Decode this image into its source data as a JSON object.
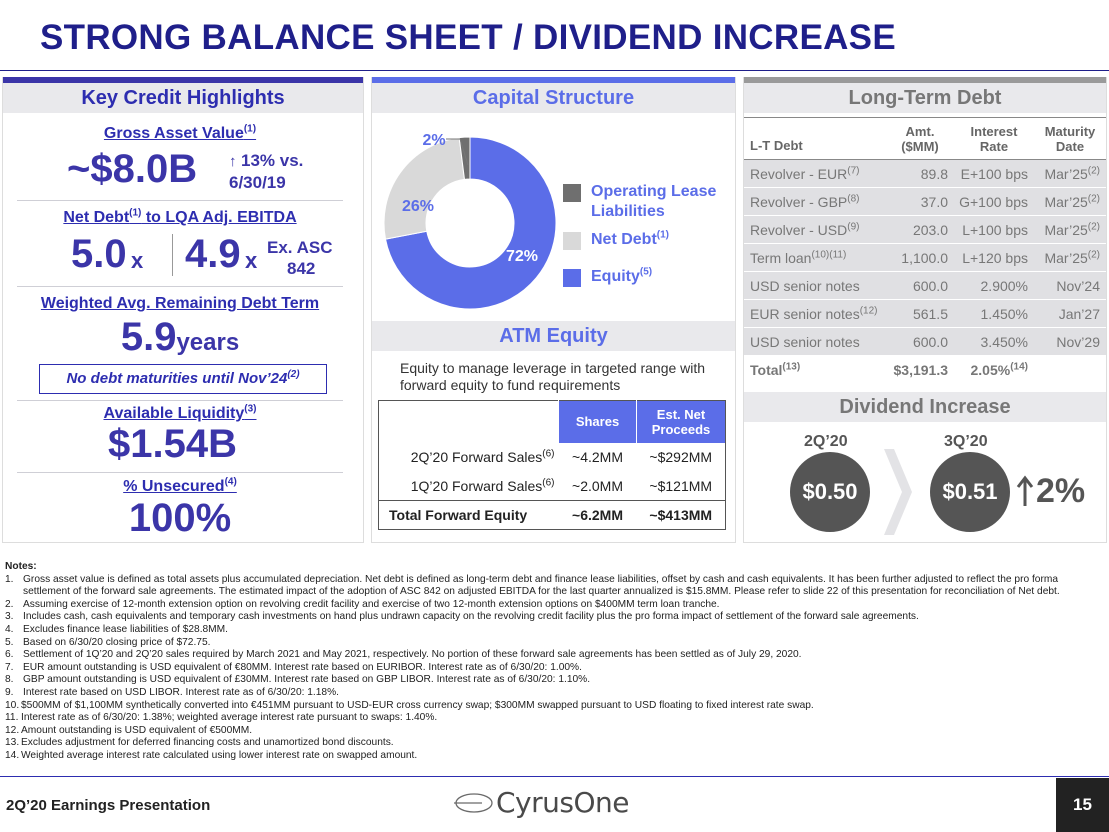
{
  "title": "STRONG BALANCE SHEET / DIVIDEND INCREASE",
  "key_credit": {
    "heading": "Key Credit Highlights",
    "gav_label": "Gross Asset Value",
    "gav_sup": "(1)",
    "gav_value": "~$8.0B",
    "gav_change_line1": "13% vs.",
    "gav_change_line2": "6/30/19",
    "netdebt_label_a": "Net Debt",
    "netdebt_sup": "(1)",
    "netdebt_label_b": " to LQA Adj. EBITDA",
    "lev_value1": "5.0",
    "lev_x1": "x",
    "lev_value2": "4.9",
    "lev_x2": "x",
    "lev_note_line1": "Ex. ASC",
    "lev_note_line2": "842",
    "term_label": "Weighted Avg. Remaining Debt Term",
    "term_value": "5.9",
    "term_unit": "years",
    "maturity_note": "No debt maturities until Nov’24",
    "maturity_sup": "(2)",
    "liq_label": "Available Liquidity",
    "liq_sup": "(3)",
    "liq_value": "$1.54B",
    "unsec_label": "% Unsecured",
    "unsec_sup": "(4)",
    "unsec_value": "100%"
  },
  "capital_structure": {
    "heading": "Capital Structure",
    "legend": [
      {
        "label_line1": "Operating Lease",
        "label_line2": "Liabilities",
        "sup": "",
        "color": "#6f6f6f"
      },
      {
        "label_line1": "Net Debt",
        "label_line2": "",
        "sup": "(1)",
        "color": "#d9d9d9"
      },
      {
        "label_line1": "Equity",
        "label_line2": "",
        "sup": "(5)",
        "color": "#5b6de8"
      }
    ]
  },
  "chart_data": {
    "type": "pie",
    "categories": [
      "Equity",
      "Net Debt",
      "Operating Lease Liabilities"
    ],
    "values": [
      72,
      26,
      2
    ],
    "labels": [
      "72%",
      "26%",
      "2%"
    ],
    "colors": [
      "#5b6de8",
      "#d9d9d9",
      "#6f6f6f"
    ],
    "legend_position": "right"
  },
  "atm": {
    "heading": "ATM Equity",
    "description": "Equity to manage leverage in targeted range with forward equity to fund requirements",
    "col_shares": "Shares",
    "col_proceeds_line1": "Est. Net",
    "col_proceeds_line2": "Proceeds",
    "rows": [
      {
        "label": "2Q’20 Forward Sales",
        "sup": "(6)",
        "shares": "~4.2MM",
        "proceeds": "~$292MM"
      },
      {
        "label": "1Q’20 Forward Sales",
        "sup": "(6)",
        "shares": "~2.0MM",
        "proceeds": "~$121MM"
      }
    ],
    "total": {
      "label": "Total Forward Equity",
      "shares": "~6.2MM",
      "proceeds": "~$413MM"
    }
  },
  "ltd": {
    "heading": "Long-Term Debt",
    "col_debt": "L-T Debt",
    "col_amt_line1": "Amt.",
    "col_amt_line2": "($MM)",
    "col_rate_line1": "Interest",
    "col_rate_line2": "Rate",
    "col_mat_line1": "Maturity",
    "col_mat_line2": "Date",
    "rows": [
      {
        "name": "Revolver - EUR",
        "sup": "(7)",
        "amt": "89.8",
        "rate": "E+100 bps",
        "maturity": "Mar’25",
        "msup": "(2)"
      },
      {
        "name": "Revolver - GBP",
        "sup": "(8)",
        "amt": "37.0",
        "rate": "G+100 bps",
        "maturity": "Mar’25",
        "msup": "(2)"
      },
      {
        "name": "Revolver - USD",
        "sup": "(9)",
        "amt": "203.0",
        "rate": "L+100 bps",
        "maturity": "Mar’25",
        "msup": "(2)"
      },
      {
        "name": "Term loan",
        "sup": "(10)(11)",
        "amt": "1,100.0",
        "rate": "L+120 bps",
        "maturity": "Mar’25",
        "msup": "(2)"
      },
      {
        "name": "USD senior notes",
        "sup": "",
        "amt": "600.0",
        "rate": "2.900%",
        "maturity": "Nov’24",
        "msup": ""
      },
      {
        "name": "EUR senior notes",
        "sup": "(12)",
        "amt": "561.5",
        "rate": "1.450%",
        "maturity": "Jan’27",
        "msup": ""
      },
      {
        "name": "USD senior notes",
        "sup": "",
        "amt": "600.0",
        "rate": "3.450%",
        "maturity": "Nov’29",
        "msup": ""
      }
    ],
    "total": {
      "name": "Total",
      "sup": "(13)",
      "amt": "$3,191.3",
      "rate": "2.05%",
      "rsup": "(14)"
    }
  },
  "dividend": {
    "heading": "Dividend Increase",
    "q1": "2Q’20",
    "v1": "$0.50",
    "q2": "3Q’20",
    "v2": "$0.51",
    "pct": "2%"
  },
  "notes": {
    "title": "Notes:",
    "items": [
      {
        "n": "1.",
        "t": "Gross asset value is defined as total assets plus accumulated depreciation. Net debt is defined as long-term debt and finance lease liabilities, offset by cash and cash equivalents. It has been further adjusted to reflect the pro forma settlement of the forward sale agreements. The estimated impact of the adoption of ASC 842 on adjusted EBITDA for the last quarter annualized is $15.8MM. Please refer to slide 22 of this presentation for reconciliation of Net debt."
      },
      {
        "n": "2.",
        "t": "Assuming exercise of 12-month extension option on revolving credit facility and exercise of two 12-month extension options on $400MM term loan tranche."
      },
      {
        "n": "3.",
        "t": "Includes cash, cash equivalents and temporary cash investments on hand plus undrawn capacity on the revolving credit facility plus the pro forma impact of settlement of the forward sale agreements."
      },
      {
        "n": "4.",
        "t": "Excludes finance lease liabilities of $28.8MM."
      },
      {
        "n": "5.",
        "t": "Based on 6/30/20 closing price of $72.75."
      },
      {
        "n": "6.",
        "t": "Settlement of 1Q’20 and 2Q’20 sales required by March 2021 and May 2021, respectively. No portion of these forward sale agreements has been settled as of July 29, 2020."
      },
      {
        "n": "7.",
        "t": "EUR amount outstanding is USD equivalent of €80MM. Interest rate based on EURIBOR. Interest rate as of 6/30/20: 1.00%."
      },
      {
        "n": "8.",
        "t": "GBP amount outstanding is USD equivalent of £30MM. Interest rate based on GBP LIBOR. Interest rate as of 6/30/20: 1.10%."
      },
      {
        "n": "9.",
        "t": "Interest rate based on USD LIBOR. Interest rate as of 6/30/20: 1.18%."
      },
      {
        "n": "10.",
        "t": "$500MM of $1,100MM synthetically converted into €451MM pursuant to USD-EUR cross currency swap; $300MM swapped pursuant to USD floating to fixed interest rate swap."
      },
      {
        "n": "11.",
        "t": "Interest rate as of 6/30/20: 1.38%; weighted average interest rate pursuant to swaps: 1.40%."
      },
      {
        "n": "12.",
        "t": "Amount outstanding is USD equivalent of €500MM."
      },
      {
        "n": "13.",
        "t": "Excludes adjustment for deferred financing costs and unamortized bond discounts."
      },
      {
        "n": "14.",
        "t": "Weighted average interest rate calculated using lower interest rate on swapped amount."
      }
    ]
  },
  "footer": {
    "left": "2Q’20 Earnings Presentation",
    "logo_text": "CyrusOne",
    "page": "15"
  }
}
